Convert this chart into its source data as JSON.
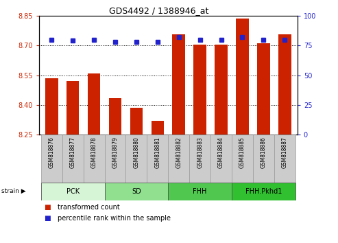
{
  "title": "GDS4492 / 1388946_at",
  "samples": [
    "GSM818876",
    "GSM818877",
    "GSM818878",
    "GSM818879",
    "GSM818880",
    "GSM818881",
    "GSM818882",
    "GSM818883",
    "GSM818884",
    "GSM818885",
    "GSM818886",
    "GSM818887"
  ],
  "bar_values": [
    8.535,
    8.52,
    8.56,
    8.435,
    8.385,
    8.32,
    8.755,
    8.705,
    8.705,
    8.835,
    8.71,
    8.755
  ],
  "percentile_values": [
    80,
    79,
    80,
    78,
    78,
    78,
    82,
    80,
    80,
    82,
    80,
    80
  ],
  "bar_color": "#cc2200",
  "percentile_color": "#2222cc",
  "ylim_left": [
    8.25,
    8.85
  ],
  "ylim_right": [
    0,
    100
  ],
  "yticks_left": [
    8.25,
    8.4,
    8.55,
    8.7,
    8.85
  ],
  "yticks_right": [
    0,
    25,
    50,
    75,
    100
  ],
  "grid_lines": [
    8.4,
    8.55,
    8.7
  ],
  "groups": [
    {
      "label": "PCK",
      "start": 0,
      "end": 3,
      "color": "#d6f5d6"
    },
    {
      "label": "SD",
      "start": 3,
      "end": 6,
      "color": "#90e090"
    },
    {
      "label": "FHH",
      "start": 6,
      "end": 9,
      "color": "#50c850"
    },
    {
      "label": "FHH.Pkhd1",
      "start": 9,
      "end": 12,
      "color": "#30c030"
    }
  ],
  "strain_label": "strain",
  "legend_bar_label": "transformed count",
  "legend_pct_label": "percentile rank within the sample",
  "background_color": "#ffffff",
  "plot_bg_color": "#ffffff",
  "tick_label_color_left": "#cc2200",
  "tick_label_color_right": "#2222cc",
  "label_box_color": "#cccccc",
  "label_box_edge": "#999999"
}
